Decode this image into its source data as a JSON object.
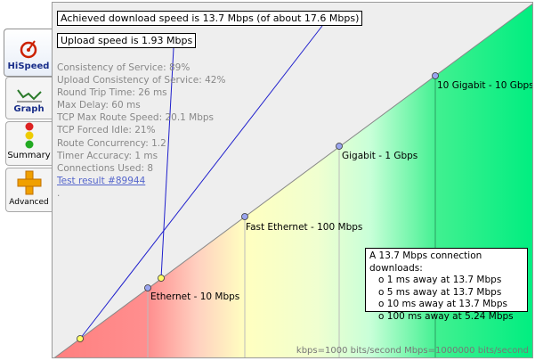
{
  "tabs": [
    {
      "label": "HiSpeed",
      "icon": "hispeed-icon",
      "active": true
    },
    {
      "label": "Graph",
      "icon": "graph-icon",
      "active": false
    },
    {
      "label": "Summary",
      "icon": "traffic-light-icon",
      "active": false
    },
    {
      "label": "Advanced",
      "icon": "plus-icon",
      "active": false
    }
  ],
  "callouts": {
    "download": "Achieved download speed is 13.7 Mbps (of about 17.6 Mbps)",
    "upload": "Upload speed is 1.93 Mbps"
  },
  "stats": [
    "Consistency of Service: 89%",
    "Upload Consistency of Service: 42%",
    "Round Trip Time: 26 ms",
    "Max Delay: 60 ms",
    "TCP Max Route Speed: 20.1 Mbps",
    "TCP Forced Idle: 21%",
    "Route Concurrency: 1.2",
    "Timer Accuracy: 1 ms",
    "Connections Used: 8"
  ],
  "test_result_link": "Test result #89944",
  "trailing_mark": ".",
  "speed_levels": [
    {
      "label": "Ethernet - 10 Mbps"
    },
    {
      "label": "Fast Ethernet - 100 Mbps"
    },
    {
      "label": "Gigabit - 1 Gbps"
    },
    {
      "label": "10 Gigabit - 10 Gbps"
    }
  ],
  "download_box": {
    "title": "A 13.7 Mbps connection downloads:",
    "rows": [
      "o 1 ms away at 13.7 Mbps",
      "o 5 ms away at 13.7 Mbps",
      "o 10 ms away at 13.7 Mbps",
      "o 100 ms away at 5.24 Mbps"
    ]
  },
  "footer": "kbps=1000 bits/second  Mbps=1000000 bits/second",
  "colors": {
    "accent_line": "#1f1fcc",
    "red_zone": "#ff7f7f",
    "yellow_zone": "#ffffc0",
    "green_zone": "#00ee80",
    "marker_blue": "#9aa4ee",
    "marker_yellow": "#ffff66"
  }
}
